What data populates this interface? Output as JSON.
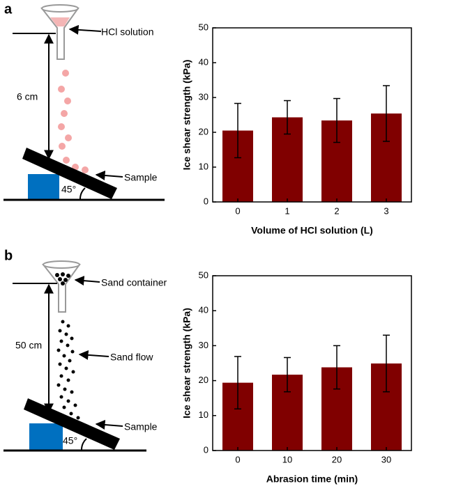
{
  "diagrams": [
    {
      "panel": "a",
      "funnel_label": "HCl solution",
      "height_label": "6 cm",
      "sample_label": "Sample",
      "angle_label": "45°"
    },
    {
      "panel": "b",
      "funnel_label": "Sand container",
      "height_label": "50 cm",
      "flow_label": "Sand flow",
      "sample_label": "Sample",
      "angle_label": "45°"
    }
  ],
  "chart_data": [
    {
      "type": "bar",
      "ylabel": "Ice shear strength (kPa)",
      "xlabel": "Volume of HCl solution (L)",
      "categories": [
        "0",
        "1",
        "2",
        "3"
      ],
      "values": [
        20.5,
        24.3,
        23.4,
        25.4
      ],
      "errors": [
        7.8,
        4.8,
        6.3,
        8.0
      ],
      "color": "#800000",
      "ylim": [
        0,
        50
      ],
      "yticks": [
        0,
        10,
        20,
        30,
        40,
        50
      ]
    },
    {
      "type": "bar",
      "ylabel": "Ice shear strength (kPa)",
      "xlabel": "Abrasion time (min)",
      "categories": [
        "0",
        "10",
        "20",
        "30"
      ],
      "values": [
        19.4,
        21.7,
        23.8,
        24.9
      ],
      "errors": [
        7.5,
        4.9,
        6.2,
        8.1
      ],
      "color": "#800000",
      "ylim": [
        0,
        50
      ],
      "yticks": [
        0,
        10,
        20,
        30,
        40,
        50
      ]
    }
  ]
}
